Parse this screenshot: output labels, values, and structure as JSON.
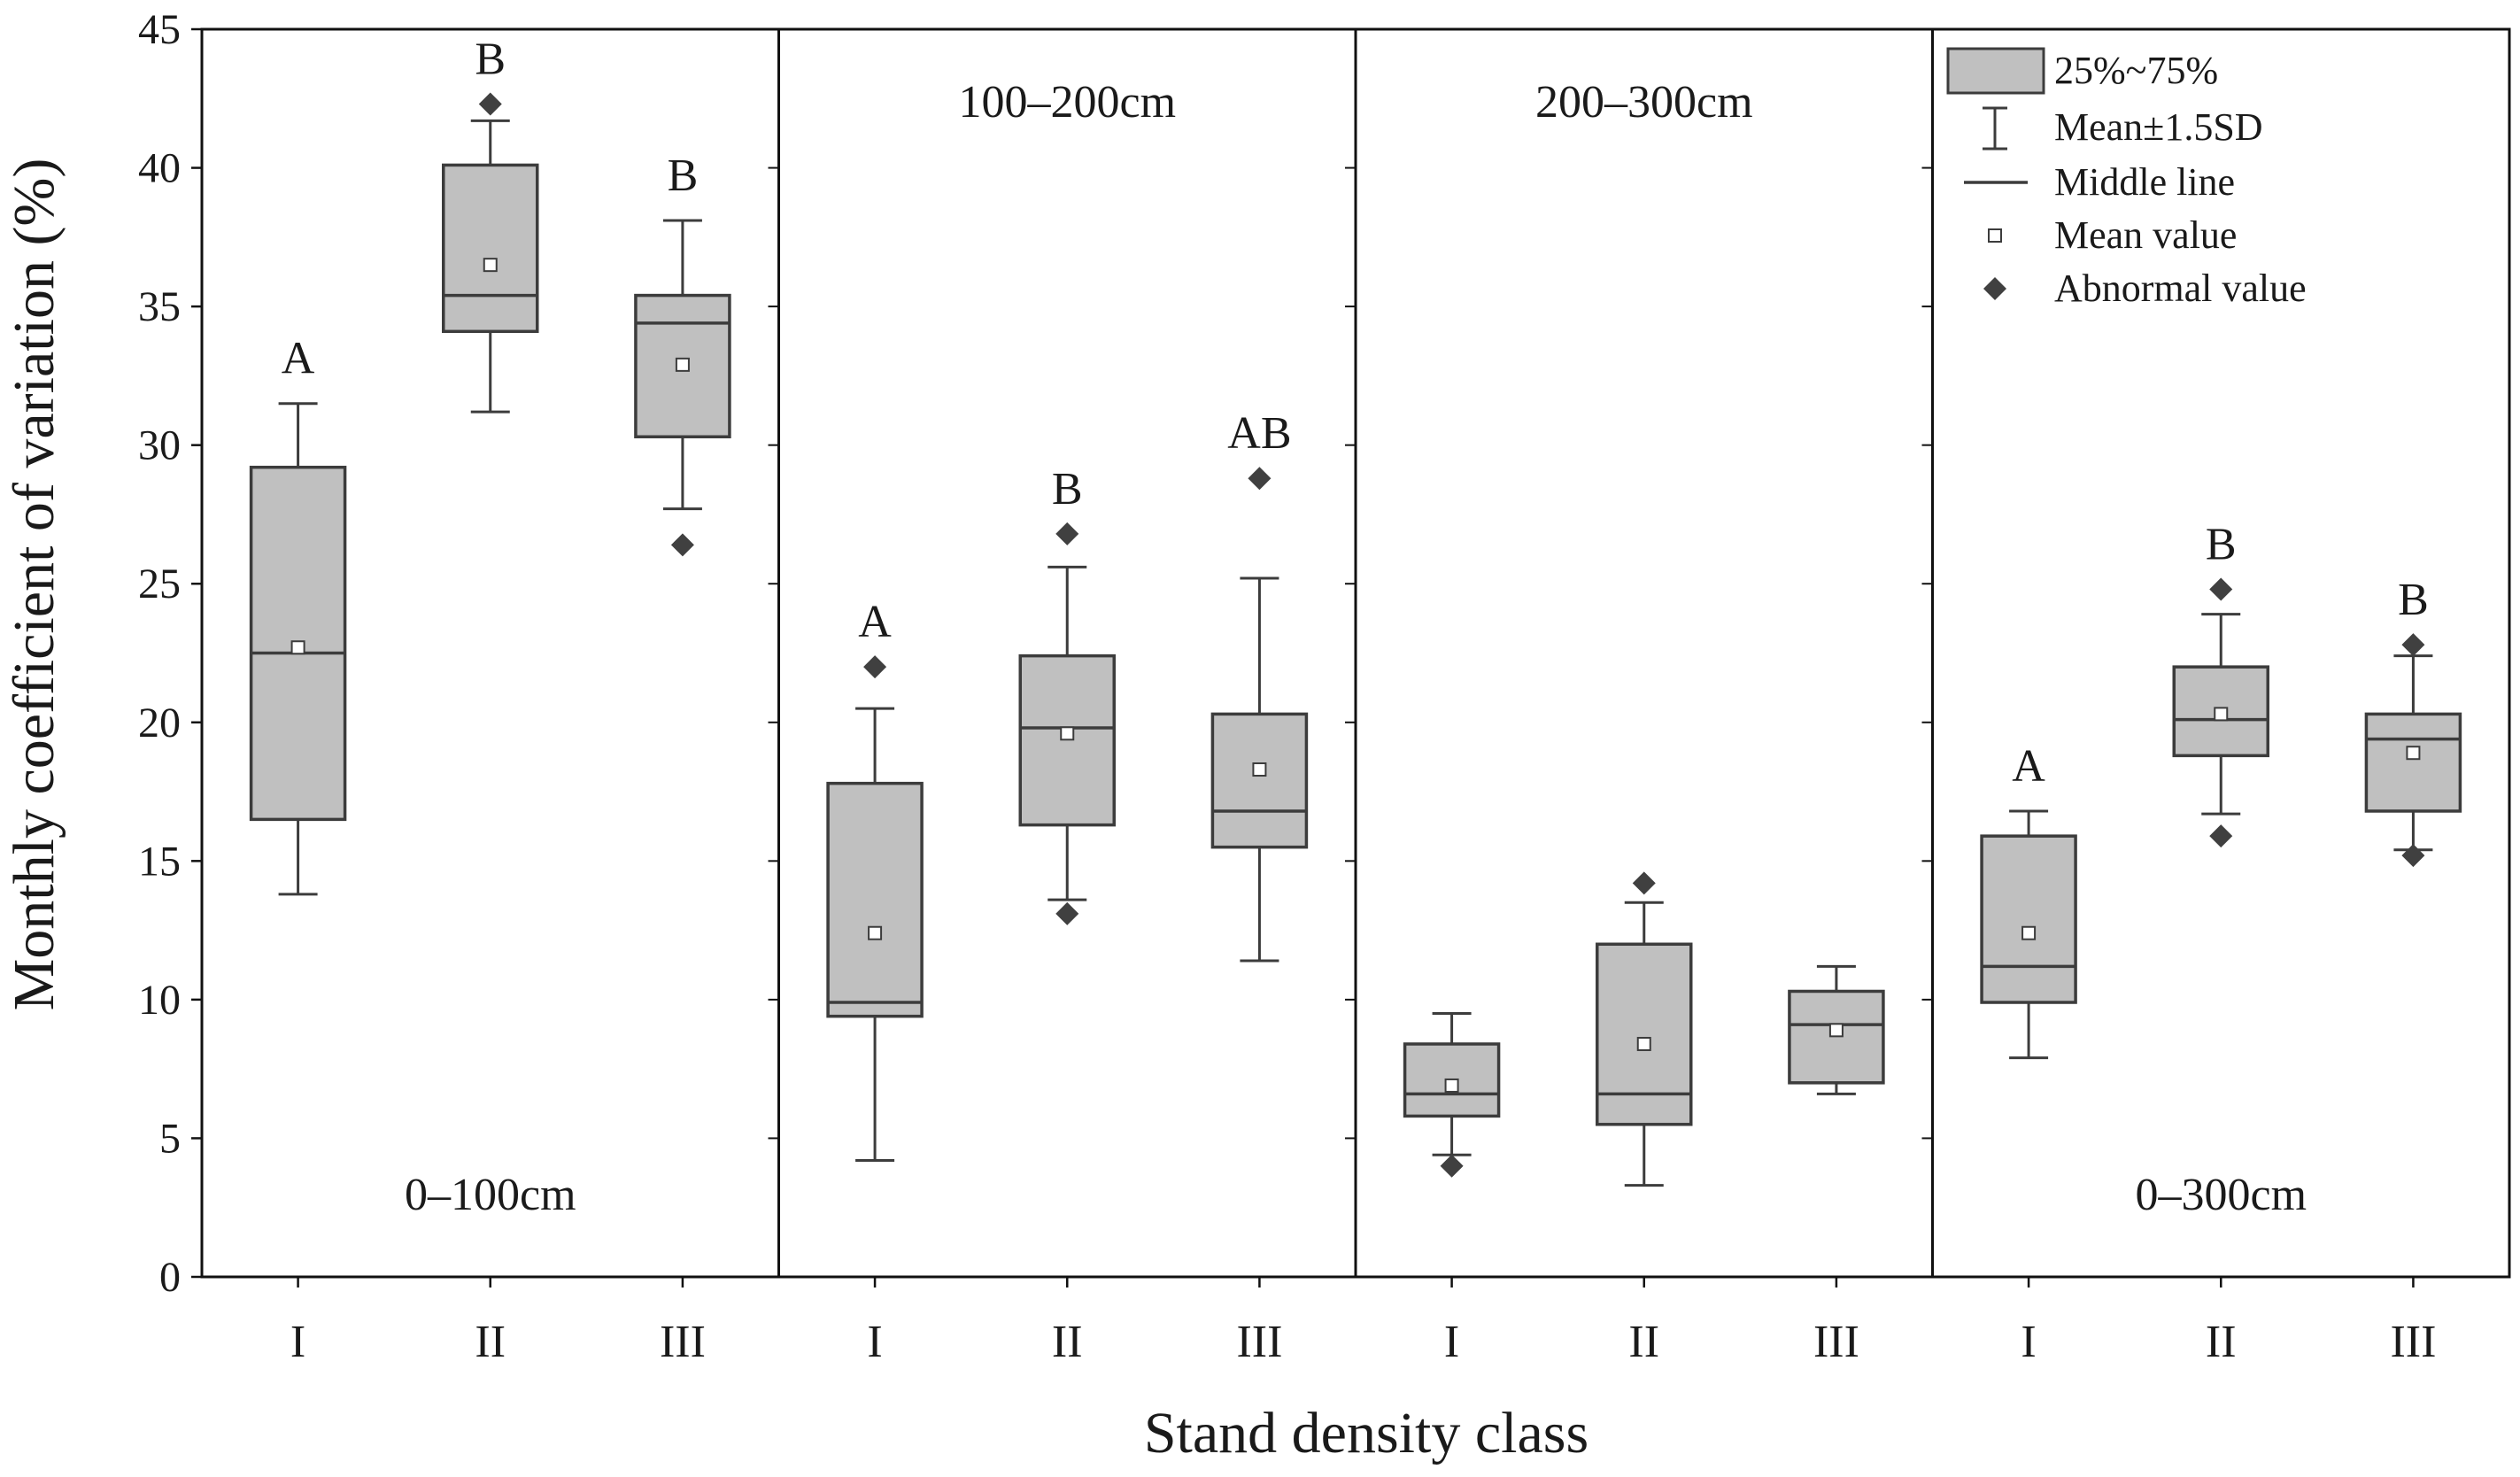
{
  "chart_data": {
    "type": "box",
    "ylabel": "Monthly coefficient of variation (%)",
    "xlabel": "Stand density class",
    "ylim": [
      0,
      45
    ],
    "yticks": [
      0,
      5,
      10,
      15,
      20,
      25,
      30,
      35,
      40,
      45
    ],
    "categories": [
      "I",
      "II",
      "III"
    ],
    "colors": {
      "box_fill": "#c0c0c0",
      "stroke": "#3c3c3c",
      "outlier": "#404040"
    },
    "legend": {
      "box": "25%~75%",
      "whisker": "Mean±1.5SD",
      "median": "Middle line",
      "mean": "Mean value",
      "outlier": "Abnormal value"
    },
    "panels": [
      {
        "name": "0–100cm",
        "label_pos": "bottom",
        "boxes": [
          {
            "category": "I",
            "q1": 16.5,
            "median": 22.5,
            "q3": 29.2,
            "mean": 22.7,
            "lower": 13.8,
            "upper": 31.5,
            "outliers": [],
            "letter": "A"
          },
          {
            "category": "II",
            "q1": 34.1,
            "median": 35.4,
            "q3": 40.1,
            "mean": 36.5,
            "lower": 31.2,
            "upper": 41.7,
            "outliers": [
              42.3
            ],
            "letter": "B"
          },
          {
            "category": "III",
            "q1": 30.3,
            "median": 34.4,
            "q3": 35.4,
            "mean": 32.9,
            "lower": 27.7,
            "upper": 38.1,
            "outliers": [
              26.4
            ],
            "letter": "B"
          }
        ]
      },
      {
        "name": "100–200cm",
        "label_pos": "top",
        "boxes": [
          {
            "category": "I",
            "q1": 9.4,
            "median": 9.9,
            "q3": 17.8,
            "mean": 12.4,
            "lower": 4.2,
            "upper": 20.5,
            "outliers": [
              22.0
            ],
            "letter": "A"
          },
          {
            "category": "II",
            "q1": 16.3,
            "median": 19.8,
            "q3": 22.4,
            "mean": 19.6,
            "lower": 13.6,
            "upper": 25.6,
            "outliers": [
              13.1,
              26.8
            ],
            "letter": "B"
          },
          {
            "category": "III",
            "q1": 15.5,
            "median": 16.8,
            "q3": 20.3,
            "mean": 18.3,
            "lower": 11.4,
            "upper": 25.2,
            "outliers": [
              28.8
            ],
            "letter": "AB"
          }
        ]
      },
      {
        "name": "200–300cm",
        "label_pos": "top",
        "boxes": [
          {
            "category": "I",
            "q1": 5.8,
            "median": 6.6,
            "q3": 8.4,
            "mean": 6.9,
            "lower": 4.4,
            "upper": 9.5,
            "outliers": [
              4.0
            ],
            "letter": ""
          },
          {
            "category": "II",
            "q1": 5.5,
            "median": 6.6,
            "q3": 12.0,
            "mean": 8.4,
            "lower": 3.3,
            "upper": 13.5,
            "outliers": [
              14.2
            ],
            "letter": ""
          },
          {
            "category": "III",
            "q1": 7.0,
            "median": 9.1,
            "q3": 10.3,
            "mean": 8.9,
            "lower": 6.6,
            "upper": 11.2,
            "outliers": [],
            "letter": ""
          }
        ]
      },
      {
        "name": "0–300cm",
        "label_pos": "bottom",
        "boxes": [
          {
            "category": "I",
            "q1": 9.9,
            "median": 11.2,
            "q3": 15.9,
            "mean": 12.4,
            "lower": 7.9,
            "upper": 16.8,
            "outliers": [],
            "letter": "A"
          },
          {
            "category": "II",
            "q1": 18.8,
            "median": 20.1,
            "q3": 22.0,
            "mean": 20.3,
            "lower": 16.7,
            "upper": 23.9,
            "outliers": [
              15.9,
              24.8
            ],
            "letter": "B"
          },
          {
            "category": "III",
            "q1": 16.8,
            "median": 19.4,
            "q3": 20.3,
            "mean": 18.9,
            "lower": 15.4,
            "upper": 22.4,
            "outliers": [
              15.2,
              22.8
            ],
            "letter": "B"
          }
        ]
      }
    ]
  }
}
